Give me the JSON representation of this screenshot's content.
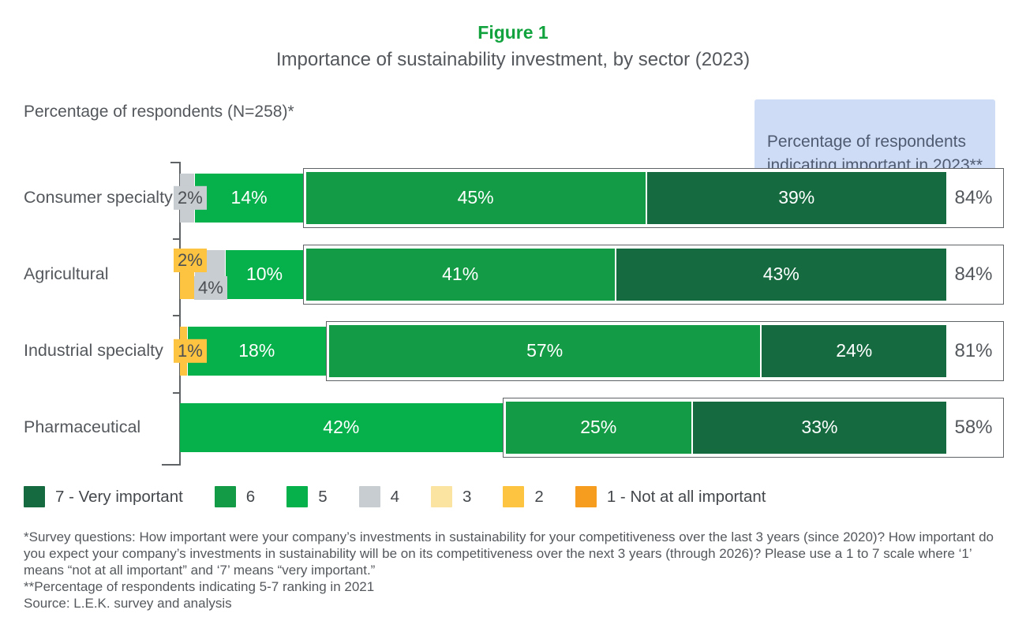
{
  "figure_label": "Figure 1",
  "title": "Importance of sustainability investment, by sector (2023)",
  "axis_caption": "Percentage of respondents (N=258)*",
  "callout_text": "Percentage of respondents\nindicating important in 2023**",
  "colors": {
    "rating7": "#156a40",
    "rating6": "#149b45",
    "rating5": "#06b04b",
    "rating4": "#c8cdd2",
    "rating3": "#fbe3a1",
    "rating2": "#fcc441",
    "rating1": "#f69c1e",
    "figure_label_green": "#12a33f",
    "callout_bg": "#cfdcf6",
    "callout_text": "#4f5b71",
    "body_text": "#54585c",
    "box_border": "#5f6366"
  },
  "chart_data": {
    "type": "bar",
    "orientation": "horizontal",
    "stacked": true,
    "x_unit": "percent of respondents",
    "x_range": [
      0,
      100
    ],
    "scale_note": "1 to 7 scale; 7 = Very important, 1 = Not at all important",
    "categories": [
      "Consumer specialty",
      "Agricultural",
      "Industrial specialty",
      "Pharmaceutical"
    ],
    "rows": [
      {
        "category": "Consumer specialty",
        "segments": [
          {
            "rating": "4",
            "value": 2,
            "label": "2%",
            "placement": "chip-mid",
            "in_box": false
          },
          {
            "rating": "5",
            "value": 14,
            "label": "14%",
            "placement": "inside",
            "in_box": false
          },
          {
            "rating": "6",
            "value": 45,
            "label": "45%",
            "placement": "inside",
            "in_box": true
          },
          {
            "rating": "7",
            "value": 39,
            "label": "39%",
            "placement": "inside",
            "in_box": true
          }
        ],
        "total_important": "84%"
      },
      {
        "category": "Agricultural",
        "segments": [
          {
            "rating": "2",
            "value": 2,
            "label": "2%",
            "placement": "chip-top",
            "in_box": false
          },
          {
            "rating": "4",
            "value": 4,
            "label": "4%",
            "placement": "chip-low",
            "in_box": false
          },
          {
            "rating": "5",
            "value": 10,
            "label": "10%",
            "placement": "inside",
            "in_box": false
          },
          {
            "rating": "6",
            "value": 41,
            "label": "41%",
            "placement": "inside",
            "in_box": true
          },
          {
            "rating": "7",
            "value": 43,
            "label": "43%",
            "placement": "inside",
            "in_box": true
          }
        ],
        "total_important": "84%"
      },
      {
        "category": "Industrial specialty",
        "segments": [
          {
            "rating": "2",
            "value": 1,
            "label": "1%",
            "placement": "chip-mid",
            "in_box": false
          },
          {
            "rating": "5",
            "value": 18,
            "label": "18%",
            "placement": "inside",
            "in_box": false
          },
          {
            "rating": "6",
            "value": 57,
            "label": "57%",
            "placement": "inside",
            "in_box": true
          },
          {
            "rating": "7",
            "value": 24,
            "label": "24%",
            "placement": "inside",
            "in_box": true
          }
        ],
        "total_important": "81%"
      },
      {
        "category": "Pharmaceutical",
        "segments": [
          {
            "rating": "5",
            "value": 42,
            "label": "42%",
            "placement": "inside",
            "in_box": false
          },
          {
            "rating": "6",
            "value": 25,
            "label": "25%",
            "placement": "inside",
            "in_box": true
          },
          {
            "rating": "7",
            "value": 33,
            "label": "33%",
            "placement": "inside",
            "in_box": true
          }
        ],
        "total_important": "58%"
      }
    ]
  },
  "legend": [
    {
      "label": "7 - Very important",
      "rating": "7"
    },
    {
      "label": "6",
      "rating": "6"
    },
    {
      "label": "5",
      "rating": "5"
    },
    {
      "label": "4",
      "rating": "4"
    },
    {
      "label": "3",
      "rating": "3"
    },
    {
      "label": "2",
      "rating": "2"
    },
    {
      "label": "1 - Not at all important",
      "rating": "1"
    }
  ],
  "footnotes": [
    "*Survey questions: How important were your company’s investments in sustainability for your competitiveness over the last 3 years (since 2020)? How important do you expect your company’s investments in sustainability will be on its competitiveness over the next 3 years (through 2026)? Please use a 1 to 7 scale where ‘1’ means “not at all important” and ‘7’ means “very important.”",
    "**Percentage of respondents indicating 5-7 ranking in 2021",
    "Source: L.E.K. survey and analysis"
  ]
}
